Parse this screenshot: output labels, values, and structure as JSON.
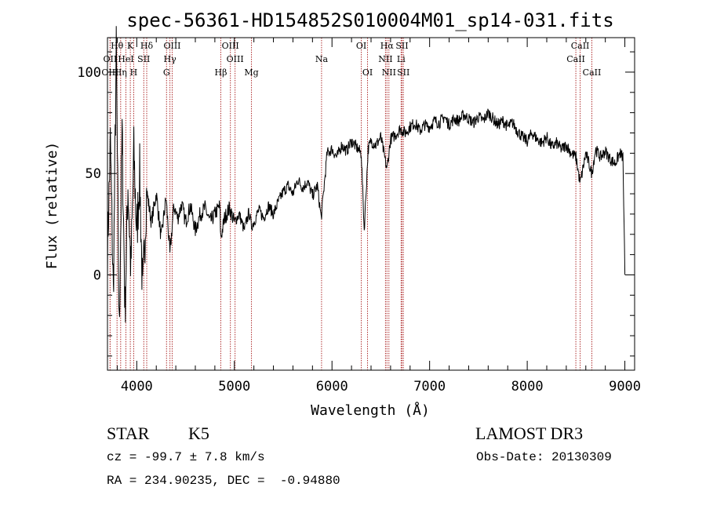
{
  "chart_data": {
    "type": "line",
    "title": "spec-56361-HD154852S010004M01_sp14-031.fits",
    "xlabel": "Wavelength (Å)",
    "ylabel": "Flux (relative)",
    "xlim": [
      3700,
      9100
    ],
    "ylim": [
      -47,
      117
    ],
    "xticks": [
      4000,
      5000,
      6000,
      7000,
      8000,
      9000
    ],
    "yticks": [
      0,
      50,
      100
    ],
    "series": [
      {
        "name": "flux",
        "x": [
          3700,
          3730,
          3760,
          3790,
          3820,
          3850,
          3880,
          3910,
          3940,
          3970,
          4000,
          4030,
          4060,
          4100,
          4150,
          4200,
          4250,
          4300,
          4340,
          4380,
          4420,
          4460,
          4500,
          4550,
          4600,
          4650,
          4700,
          4750,
          4800,
          4850,
          4861,
          4900,
          4950,
          5000,
          5050,
          5100,
          5150,
          5175,
          5200,
          5250,
          5300,
          5350,
          5400,
          5450,
          5500,
          5550,
          5600,
          5650,
          5700,
          5750,
          5800,
          5850,
          5890,
          5950,
          6000,
          6050,
          6100,
          6150,
          6200,
          6250,
          6300,
          6330,
          6370,
          6400,
          6450,
          6500,
          6563,
          6600,
          6650,
          6700,
          6750,
          6800,
          6850,
          6900,
          6950,
          7000,
          7050,
          7100,
          7150,
          7200,
          7250,
          7300,
          7350,
          7400,
          7450,
          7500,
          7550,
          7600,
          7650,
          7700,
          7750,
          7800,
          7850,
          7900,
          7950,
          8000,
          8050,
          8100,
          8150,
          8200,
          8250,
          8300,
          8350,
          8400,
          8450,
          8500,
          8542,
          8600,
          8662,
          8700,
          8750,
          8800,
          8850,
          8900,
          8950,
          8980,
          9000
        ],
        "y": [
          12,
          65,
          -10,
          110,
          -28,
          70,
          -18,
          45,
          2,
          60,
          20,
          50,
          -12,
          42,
          26,
          40,
          18,
          38,
          10,
          34,
          28,
          35,
          26,
          34,
          22,
          30,
          33,
          26,
          30,
          34,
          18,
          28,
          33,
          26,
          30,
          22,
          31,
          24,
          26,
          32,
          28,
          34,
          30,
          36,
          41,
          44,
          40,
          47,
          43,
          46,
          39,
          44,
          28,
          60,
          62,
          58,
          64,
          61,
          66,
          63,
          60,
          22,
          62,
          66,
          64,
          68,
          52,
          67,
          69,
          72,
          70,
          73,
          75,
          71,
          74,
          73,
          76,
          75,
          78,
          74,
          77,
          76,
          79,
          77,
          75,
          78,
          76,
          80,
          77,
          74,
          76,
          73,
          75,
          71,
          68,
          66,
          70,
          67,
          65,
          68,
          63,
          65,
          62,
          64,
          60,
          58,
          45,
          60,
          50,
          62,
          58,
          61,
          57,
          55,
          60,
          58,
          0
        ]
      }
    ],
    "lines": [
      {
        "label": "Hθ",
        "row": 1,
        "x": 3798
      },
      {
        "label": "K",
        "row": 1,
        "x": 3934
      },
      {
        "label": "Hδ",
        "row": 1,
        "x": 4102
      },
      {
        "label": "OIII",
        "row": 1,
        "x": 4363
      },
      {
        "label": "OIII",
        "row": 1,
        "x": 4959
      },
      {
        "label": "OI",
        "row": 1,
        "x": 6300
      },
      {
        "label": "Hα",
        "row": 1,
        "x": 6563
      },
      {
        "label": "SII",
        "row": 1,
        "x": 6717
      },
      {
        "label": "CaII",
        "row": 1,
        "x": 8542
      },
      {
        "label": "OII",
        "row": 2,
        "x": 3727
      },
      {
        "label": "HeI",
        "row": 2,
        "x": 3889
      },
      {
        "label": "SII",
        "row": 2,
        "x": 4072
      },
      {
        "label": "Hγ",
        "row": 2,
        "x": 4340
      },
      {
        "label": "OIII",
        "row": 2,
        "x": 5007
      },
      {
        "label": "Na",
        "row": 2,
        "x": 5893
      },
      {
        "label": "NII",
        "row": 2,
        "x": 6548
      },
      {
        "label": "Li",
        "row": 2,
        "x": 6708
      },
      {
        "label": "CaII",
        "row": 2,
        "x": 8498
      },
      {
        "label": "OIII",
        "row": 3,
        "x": 3727
      },
      {
        "label": "Hη",
        "row": 3,
        "x": 3835
      },
      {
        "label": "H",
        "row": 3,
        "x": 3969
      },
      {
        "label": "G",
        "row": 3,
        "x": 4305
      },
      {
        "label": "Hβ",
        "row": 3,
        "x": 4861
      },
      {
        "label": "Mg",
        "row": 3,
        "x": 5175
      },
      {
        "label": "OI",
        "row": 3,
        "x": 6364
      },
      {
        "label": "NII",
        "row": 3,
        "x": 6583
      },
      {
        "label": "SII",
        "row": 3,
        "x": 6731
      },
      {
        "label": "CaII",
        "row": 3,
        "x": 8662
      }
    ],
    "colors": {
      "line": "#b03030",
      "flux": "#000000"
    }
  },
  "info": {
    "class": "STAR",
    "subclass": "K5",
    "survey": "LAMOST DR3",
    "cz": "cz = -99.7 ± 7.8 km/s",
    "obs_date": "Obs-Date: 20130309",
    "coords": "RA = 234.90235, DEC =  -0.94880"
  }
}
